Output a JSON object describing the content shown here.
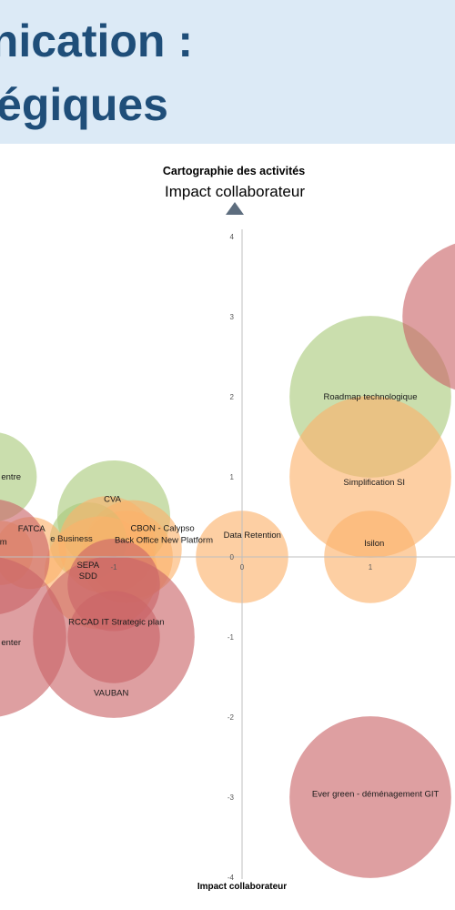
{
  "header": {
    "line1": "nication :",
    "line2": "égiques"
  },
  "chart_data": {
    "type": "bubble",
    "title": "Cartographie des activités",
    "subtitle": "Impact collaborateur",
    "bottom_label": "Impact collaborateur",
    "xlim": [
      -1.9,
      1.66
    ],
    "ylim": [
      -4,
      4
    ],
    "y_ticks": [
      4,
      3,
      2,
      1,
      0,
      -1,
      -2,
      -3,
      -4
    ],
    "x_ticks": [
      -1,
      0,
      1
    ],
    "colors": {
      "green": "#a9c97a",
      "orange": "#fbb26a",
      "red": "#c96468",
      "axis": "#bfbfbf",
      "arrow": "#5d6d7e"
    },
    "points": [
      {
        "label": "Roadmap technologique",
        "x": 1.0,
        "y": 2.0,
        "r": 0.63,
        "color": "green",
        "lx": 1.0,
        "ly": 2.0
      },
      {
        "label": "Simplification SI",
        "x": 1.0,
        "y": 1.0,
        "r": 0.63,
        "color": "orange",
        "lx": 1.03,
        "ly": 0.93
      },
      {
        "label": "",
        "x": 1.85,
        "y": 3.0,
        "r": 0.6,
        "color": "red",
        "lx": 1.85,
        "ly": 3.0
      },
      {
        "label": "Isilon",
        "x": 1.0,
        "y": 0.0,
        "r": 0.36,
        "color": "orange",
        "lx": 1.03,
        "ly": 0.17
      },
      {
        "label": "Data Retention",
        "x": 0.0,
        "y": 0.0,
        "r": 0.36,
        "color": "orange",
        "lx": 0.08,
        "ly": 0.27
      },
      {
        "label": "Ever green - déménagement GIT",
        "x": 1.0,
        "y": -3.0,
        "r": 0.63,
        "color": "red",
        "lx": 1.04,
        "ly": -2.96
      },
      {
        "label": "CVA",
        "x": -1.0,
        "y": 0.5,
        "r": 0.44,
        "color": "green",
        "lx": -1.01,
        "ly": 0.72
      },
      {
        "label": "CBON - Calypso",
        "x": -0.85,
        "y": 0.1,
        "r": 0.38,
        "color": "orange",
        "lx": -0.62,
        "ly": 0.36
      },
      {
        "label": "Back Office New Platform",
        "x": -0.9,
        "y": 0.0,
        "r": 0.36,
        "color": "orange",
        "lx": -0.61,
        "ly": 0.21
      },
      {
        "label": "e Business",
        "x": -1.2,
        "y": 0.2,
        "r": 0.3,
        "color": "green",
        "lx": -1.33,
        "ly": 0.23
      },
      {
        "label": "",
        "x": -1.05,
        "y": 0.15,
        "r": 0.38,
        "color": "orange",
        "lx": -1.05,
        "ly": 0.15
      },
      {
        "label": "FATCA",
        "x": -1.65,
        "y": 0.05,
        "r": 0.28,
        "color": "orange",
        "lx": -1.64,
        "ly": 0.35
      },
      {
        "label": "m",
        "x": -1.88,
        "y": 0.05,
        "r": 0.25,
        "color": "orange",
        "lx": -1.86,
        "ly": 0.19
      },
      {
        "label": "SEPA\nSDD",
        "x": -1.1,
        "y": -0.2,
        "r": 0.44,
        "color": "orange",
        "lx": -1.2,
        "ly": -0.17
      },
      {
        "label": "",
        "x": -1.0,
        "y": -0.35,
        "r": 0.36,
        "color": "red",
        "lx": -1.0,
        "ly": -0.35
      },
      {
        "label": "RCCAD IT Strategic plan",
        "x": -1.0,
        "y": -1.0,
        "r": 0.63,
        "color": "red",
        "lx": -0.98,
        "ly": -0.81
      },
      {
        "label": "VAUBAN",
        "x": -1.0,
        "y": -1.0,
        "r": 0.36,
        "color": "red",
        "lx": -1.02,
        "ly": -1.7
      },
      {
        "label": "entre",
        "x": -1.95,
        "y": 1.0,
        "r": 0.35,
        "color": "green",
        "lx": -1.8,
        "ly": 1.0
      },
      {
        "label": "enter",
        "x": -2.0,
        "y": -1.0,
        "r": 0.63,
        "color": "red",
        "lx": -1.8,
        "ly": -1.07
      },
      {
        "label": "",
        "x": -1.95,
        "y": 0.0,
        "r": 0.45,
        "color": "red",
        "lx": -1.95,
        "ly": 0.0
      }
    ]
  }
}
